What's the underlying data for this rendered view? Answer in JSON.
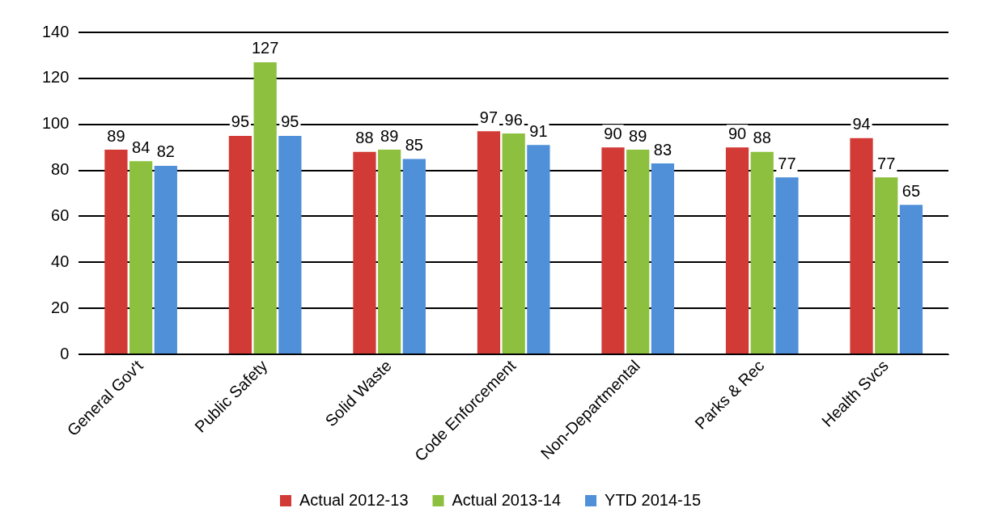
{
  "chart_data": {
    "type": "bar",
    "categories": [
      "General Gov't",
      "Public Safety",
      "Solid Waste",
      "Code Enforcement",
      "Non-Departmental",
      "Parks & Rec",
      "Health Svcs"
    ],
    "series": [
      {
        "name": "Actual 2012-13",
        "color": "#d23a35",
        "values": [
          89,
          95,
          88,
          97,
          90,
          90,
          94
        ]
      },
      {
        "name": "Actual 2013-14",
        "color": "#8dc03f",
        "values": [
          84,
          127,
          89,
          96,
          89,
          88,
          77
        ]
      },
      {
        "name": "YTD 2014-15",
        "color": "#4f90d8",
        "values": [
          82,
          95,
          85,
          91,
          83,
          77,
          65
        ]
      }
    ],
    "ylim": [
      0,
      140
    ],
    "yticks": [
      0,
      20,
      40,
      60,
      80,
      100,
      120,
      140
    ],
    "grid": "y",
    "legend": "bottom",
    "data_labels": true
  }
}
